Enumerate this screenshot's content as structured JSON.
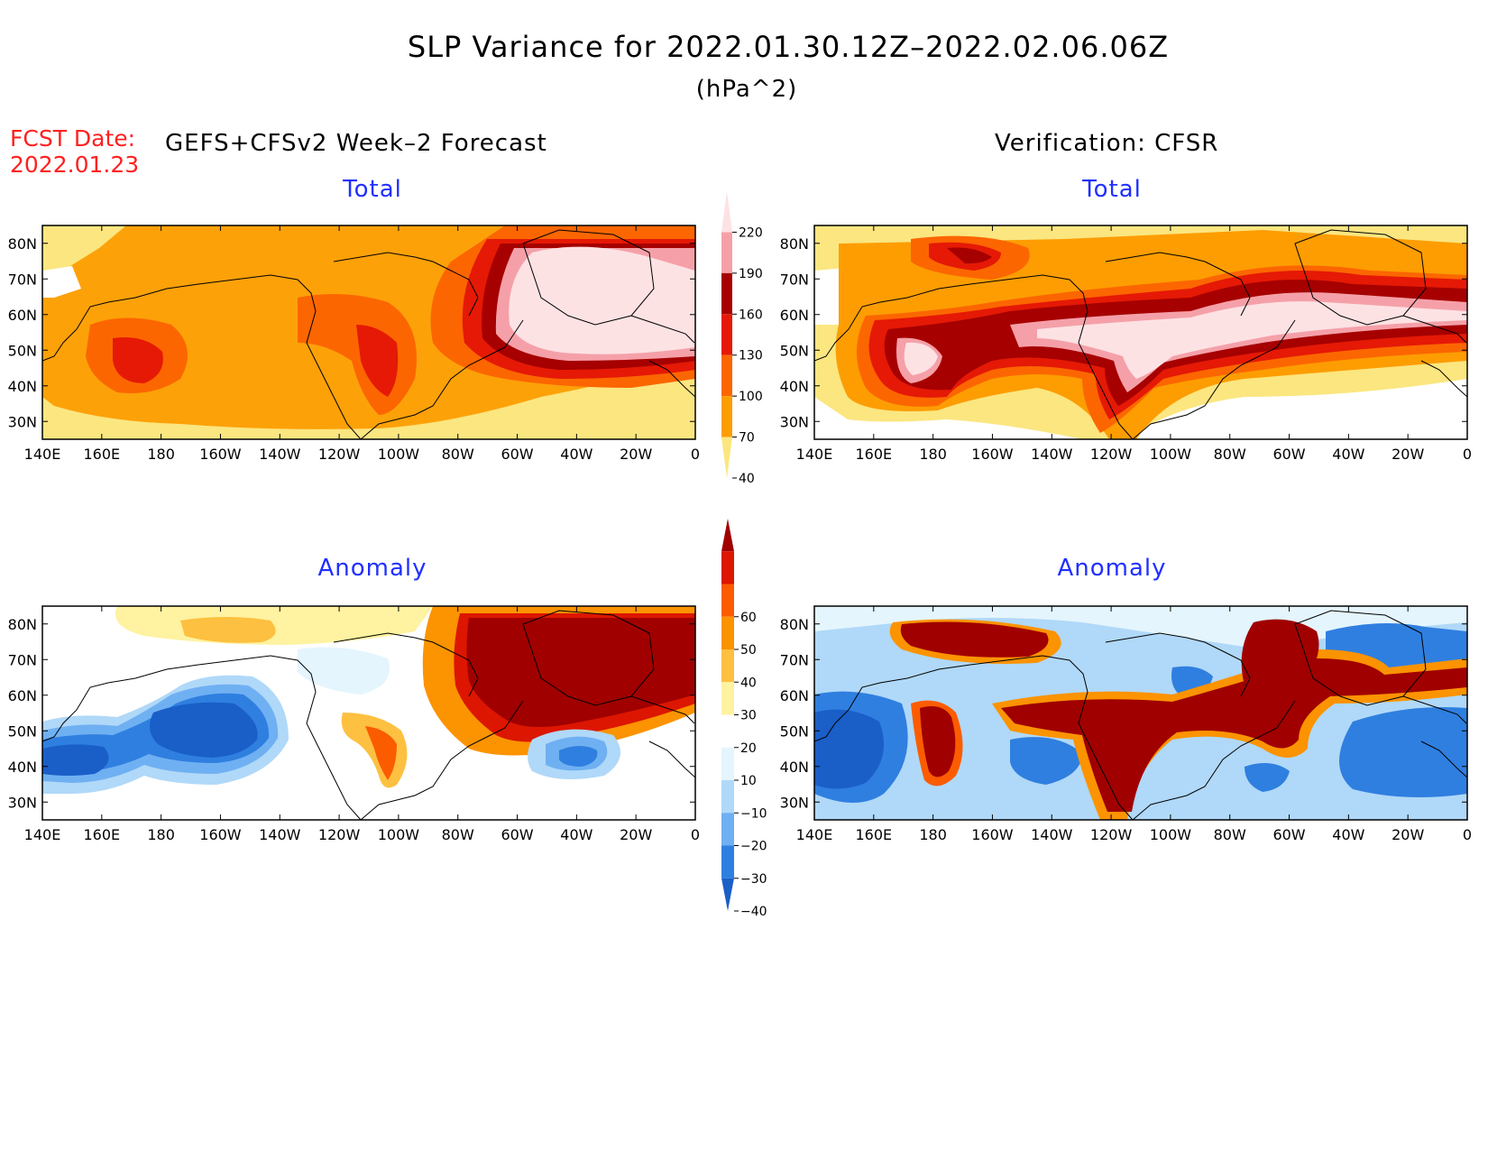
{
  "header": {
    "title": "SLP Variance for 2022.01.30.12Z–2022.02.06.06Z",
    "units": "(hPa^2)",
    "fcst_label": "FCST Date:",
    "fcst_date": "2022.01.23",
    "left_column_title": "GEFS+CFSv2 Week–2 Forecast",
    "right_column_title": "Verification: CFSR"
  },
  "panels": [
    {
      "id": "fcst-total",
      "title": "Total",
      "field": "total_fcst"
    },
    {
      "id": "verif-total",
      "title": "Total",
      "field": "total_verif"
    },
    {
      "id": "fcst-anomaly",
      "title": "Anomaly",
      "field": "anom_fcst"
    },
    {
      "id": "verif-anomaly",
      "title": "Anomaly",
      "field": "anom_verif"
    }
  ],
  "axes": {
    "lon_labels": [
      "140E",
      "160E",
      "180",
      "160W",
      "140W",
      "120W",
      "100W",
      "80W",
      "60W",
      "40W",
      "20W",
      "0"
    ],
    "lon_values": [
      140,
      160,
      180,
      200,
      220,
      240,
      260,
      280,
      300,
      320,
      340,
      360
    ],
    "lat_labels": [
      "80N",
      "70N",
      "60N",
      "50N",
      "40N",
      "30N"
    ],
    "lat_values": [
      80,
      70,
      60,
      50,
      40,
      30
    ],
    "lon_range": [
      140,
      360
    ],
    "lat_range": [
      25,
      85
    ]
  },
  "colorbars": {
    "total": {
      "levels": [
        "40",
        "70",
        "100",
        "130",
        "160",
        "190",
        "220"
      ],
      "colors": [
        "#fbe680",
        "#fd9d02",
        "#fc6600",
        "#e51905",
        "#a60000",
        "#f5a0a8",
        "#fde2e4"
      ]
    },
    "anomaly": {
      "levels": [
        "−40",
        "−30",
        "−20",
        "−10",
        "10",
        "20",
        "30",
        "40",
        "50",
        "60"
      ],
      "colors": [
        "#1a5fc8",
        "#2f7fe0",
        "#6fb0f2",
        "#b0d8f8",
        "#e4f5fd",
        "#ffffff",
        "#fff2a0",
        "#fdc040",
        "#fc9300",
        "#fb5c00",
        "#dc1600",
        "#a00000"
      ]
    }
  }
}
